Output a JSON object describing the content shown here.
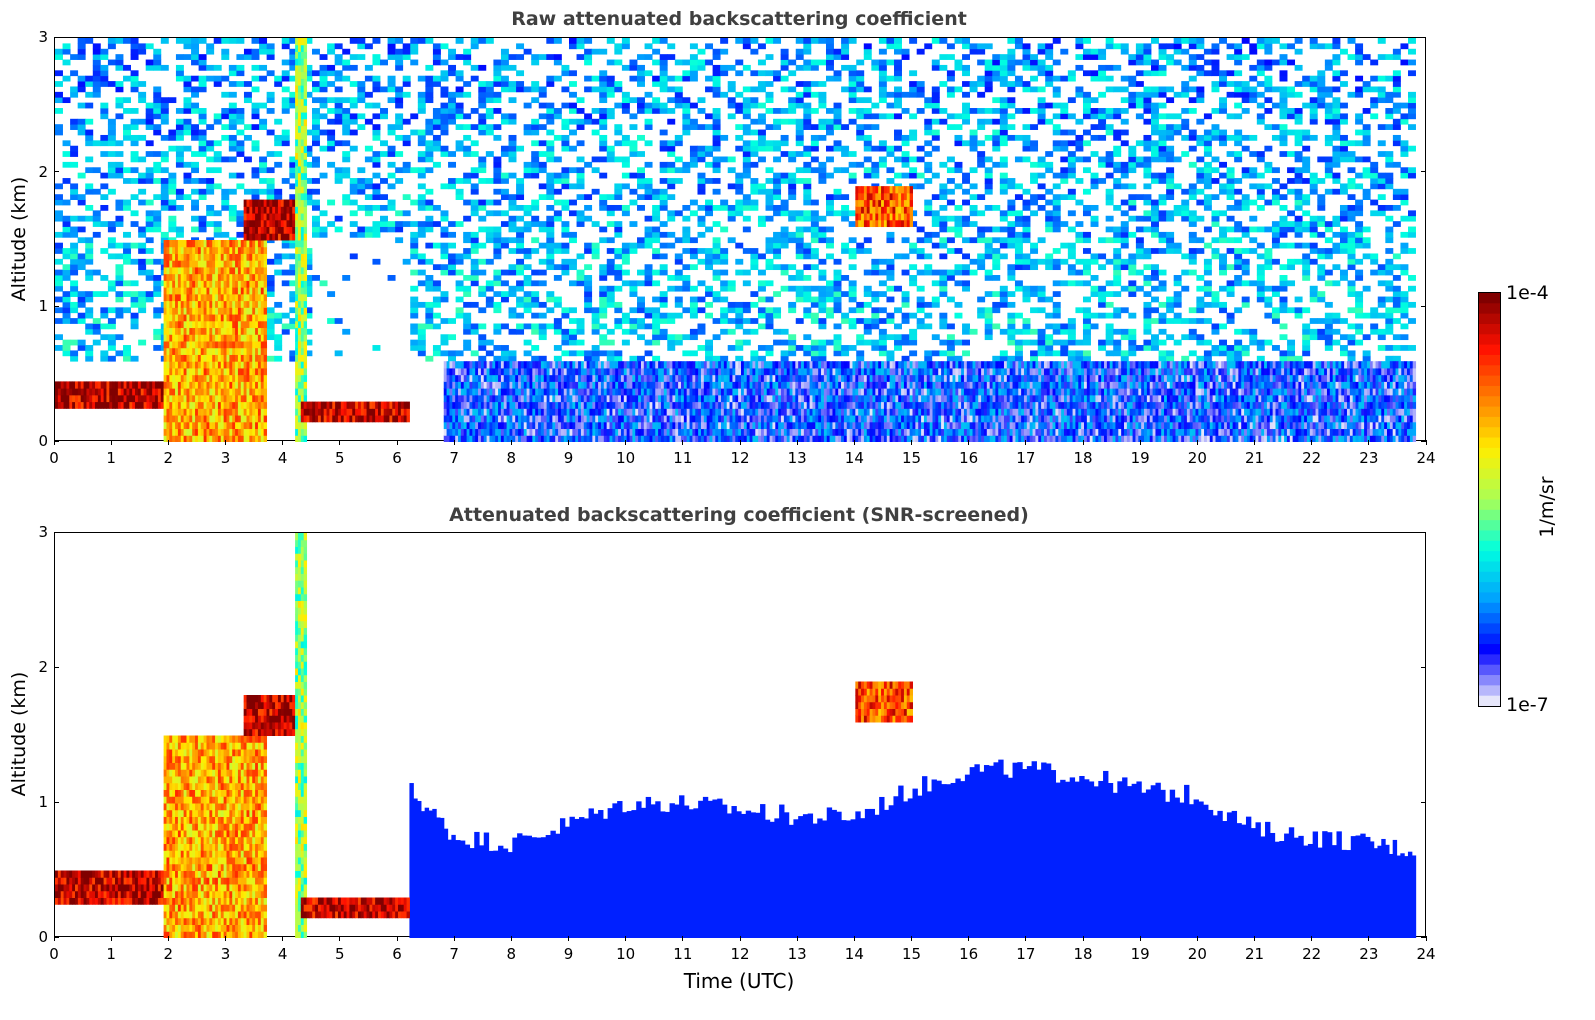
{
  "chart_data": [
    {
      "type": "heatmap",
      "title": "Raw attenuated backscattering coefficient",
      "xlabel": "",
      "ylabel": "Altitude (km)",
      "xlim": [
        0,
        24
      ],
      "ylim": [
        0,
        3
      ],
      "xticks": [
        "0",
        "1",
        "2",
        "3",
        "4",
        "5",
        "6",
        "7",
        "8",
        "9",
        "10",
        "11",
        "12",
        "13",
        "14",
        "15",
        "16",
        "17",
        "18",
        "19",
        "20",
        "21",
        "22",
        "23",
        "24"
      ],
      "yticks": [
        "0",
        "1",
        "2",
        "3"
      ],
      "regions": [
        {
          "name": "noise",
          "x": [
            0,
            23.8
          ],
          "y": [
            0.6,
            3.0
          ],
          "level": 0.3
        },
        {
          "name": "boundary-layer",
          "x": [
            6.8,
            23.8
          ],
          "y": [
            0,
            0.6
          ],
          "level": 0.15
        },
        {
          "name": "low-cloud-layer",
          "x": [
            0,
            2.3
          ],
          "y": [
            0.25,
            0.45
          ],
          "level": 0.95
        },
        {
          "name": "aerosol-column",
          "x": [
            1.9,
            3.7
          ],
          "y": [
            0,
            1.5
          ],
          "level": 0.7
        },
        {
          "name": "elevated-cloud",
          "x": [
            3.3,
            4.3
          ],
          "y": [
            1.5,
            1.8
          ],
          "level": 0.95
        },
        {
          "name": "precipitation-streak",
          "x": [
            4.2,
            4.4
          ],
          "y": [
            0,
            3.0
          ],
          "level": 0.5
        },
        {
          "name": "fog-top",
          "x": [
            4.3,
            6.2
          ],
          "y": [
            0.15,
            0.3
          ],
          "level": 0.95
        },
        {
          "name": "cloud-patch",
          "x": [
            14.0,
            15.0
          ],
          "y": [
            1.6,
            1.9
          ],
          "level": 0.8
        }
      ]
    },
    {
      "type": "heatmap",
      "title": "Attenuated backscattering coefficient (SNR-screened)",
      "xlabel": "Time (UTC)",
      "ylabel": "Altitude (km)",
      "xlim": [
        0,
        24
      ],
      "ylim": [
        0,
        3
      ],
      "xticks": [
        "0",
        "1",
        "2",
        "3",
        "4",
        "5",
        "6",
        "7",
        "8",
        "9",
        "10",
        "11",
        "12",
        "13",
        "14",
        "15",
        "16",
        "17",
        "18",
        "19",
        "20",
        "21",
        "22",
        "23",
        "24"
      ],
      "yticks": [
        "0",
        "1",
        "2",
        "3"
      ],
      "boundary_layer_top": [
        {
          "x": 6.2,
          "y": 1.1
        },
        {
          "x": 7.0,
          "y": 0.75
        },
        {
          "x": 8.0,
          "y": 0.7
        },
        {
          "x": 9.0,
          "y": 0.85
        },
        {
          "x": 10.0,
          "y": 1.0
        },
        {
          "x": 11.0,
          "y": 1.0
        },
        {
          "x": 12.0,
          "y": 0.95
        },
        {
          "x": 13.0,
          "y": 0.9
        },
        {
          "x": 14.0,
          "y": 0.9
        },
        {
          "x": 15.0,
          "y": 1.1
        },
        {
          "x": 16.0,
          "y": 1.25
        },
        {
          "x": 17.0,
          "y": 1.25
        },
        {
          "x": 18.0,
          "y": 1.2
        },
        {
          "x": 19.0,
          "y": 1.1
        },
        {
          "x": 20.0,
          "y": 1.05
        },
        {
          "x": 21.0,
          "y": 0.8
        },
        {
          "x": 22.0,
          "y": 0.75
        },
        {
          "x": 23.0,
          "y": 0.7
        },
        {
          "x": 23.8,
          "y": 0.65
        }
      ],
      "regions": [
        {
          "name": "low-cloud-layer",
          "x": [
            0,
            2.3
          ],
          "y": [
            0.25,
            0.5
          ],
          "level": 0.95
        },
        {
          "name": "aerosol-column",
          "x": [
            1.9,
            3.7
          ],
          "y": [
            0,
            1.5
          ],
          "level": 0.7
        },
        {
          "name": "elevated-cloud",
          "x": [
            3.3,
            4.3
          ],
          "y": [
            1.5,
            1.8
          ],
          "level": 0.95
        },
        {
          "name": "precipitation-streak",
          "x": [
            4.2,
            4.4
          ],
          "y": [
            0,
            3.0
          ],
          "level": 0.5
        },
        {
          "name": "fog-top",
          "x": [
            4.3,
            6.2
          ],
          "y": [
            0.15,
            0.3
          ],
          "level": 0.95
        },
        {
          "name": "cloud-patch",
          "x": [
            14.0,
            15.0
          ],
          "y": [
            1.6,
            1.9
          ],
          "level": 0.8
        }
      ]
    }
  ],
  "colorbar": {
    "min_label": "1e-7",
    "max_label": "1e-4",
    "unit": "1/m/sr",
    "colormap": "jet",
    "colors": [
      "#e6e6fa",
      "#0000ff",
      "#00a0ff",
      "#00ffe0",
      "#aaff55",
      "#ffee00",
      "#ff8000",
      "#ff1000",
      "#800000"
    ]
  }
}
